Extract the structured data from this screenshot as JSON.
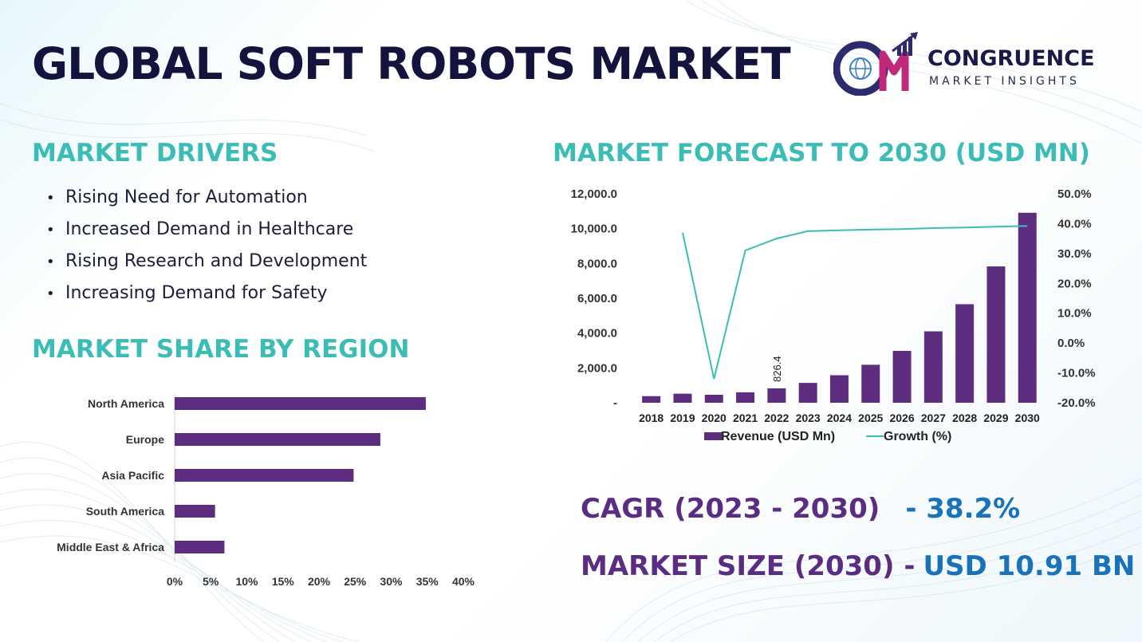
{
  "title": "GLOBAL SOFT ROBOTS MARKET",
  "logo": {
    "mark": "CM",
    "name": "CONGRUENCE",
    "subtitle": "MARKET INSIGHTS",
    "icon": "globe-bar-chart-arrow-icon"
  },
  "drivers": {
    "heading": "MARKET DRIVERS",
    "bullet": "•",
    "items": [
      "Rising Need for Automation",
      "Increased Demand in Healthcare",
      "Rising Research and Development",
      "Increasing Demand for Safety"
    ]
  },
  "regions_heading": "MARKET SHARE BY REGION",
  "forecast_heading": "MARKET FORECAST TO 2030 (USD MN)",
  "kpis": {
    "cagr_label": "CAGR (2023 - 2030)",
    "cagr_value": "- 38.2%",
    "size_label": "MARKET SIZE (2030) -",
    "size_value": "USD 10.91 BN"
  },
  "colors": {
    "bar": "#5e2d80",
    "line": "#3bbdb6",
    "heading": "#3bbdb6",
    "title": "#14133d",
    "kpi_label": "#5b2d82",
    "kpi_value": "#1a73b8"
  },
  "chart_data": [
    {
      "type": "bar",
      "orientation": "horizontal",
      "title": "MARKET SHARE BY REGION",
      "categories": [
        "North America",
        "Europe",
        "Asia Pacific",
        "South America",
        "Middle East & Africa"
      ],
      "values": [
        34.8,
        28.5,
        24.8,
        5.6,
        6.9
      ],
      "unit": "%",
      "xlim": [
        0,
        40
      ],
      "xticks": [
        0,
        5,
        10,
        15,
        20,
        25,
        30,
        35,
        40
      ],
      "xtick_labels": [
        "0%",
        "5%",
        "10%",
        "15%",
        "20%",
        "25%",
        "30%",
        "35%",
        "40%"
      ],
      "grid": false
    },
    {
      "type": "bar+line",
      "title": "MARKET FORECAST TO 2030 (USD MN)",
      "categories": [
        "2018",
        "2019",
        "2020",
        "2021",
        "2022",
        "2023",
        "2024",
        "2025",
        "2026",
        "2027",
        "2028",
        "2029",
        "2030"
      ],
      "series": [
        {
          "name": "Revenue (USD Mn)",
          "type": "bar",
          "axis": "left",
          "values": [
            380,
            520,
            460,
            600,
            826.4,
            1140,
            1580,
            2180,
            2980,
            4100,
            5660,
            7830,
            10910
          ]
        },
        {
          "name": "Growth (%)",
          "type": "line",
          "axis": "right",
          "values": [
            null,
            37.0,
            -12.0,
            31.0,
            35.0,
            37.5,
            37.8,
            38.0,
            38.2,
            38.5,
            38.7,
            39.0,
            39.2
          ]
        }
      ],
      "annotations": [
        {
          "category": "2022",
          "text": "826.4"
        }
      ],
      "y_left": {
        "lim": [
          0,
          12000
        ],
        "ticks": [
          0,
          2000,
          4000,
          6000,
          8000,
          10000,
          12000
        ],
        "tick_labels": [
          "-",
          "2,000.0",
          "4,000.0",
          "6,000.0",
          "8,000.0",
          "10,000.0",
          "12,000.0"
        ]
      },
      "y_right": {
        "lim": [
          -20,
          50
        ],
        "ticks": [
          -20,
          -10,
          0,
          10,
          20,
          30,
          40,
          50
        ],
        "tick_labels": [
          "-20.0%",
          "-10.0%",
          "0.0%",
          "10.0%",
          "20.0%",
          "30.0%",
          "40.0%",
          "50.0%"
        ]
      },
      "legend": "bottom",
      "grid": false
    }
  ]
}
